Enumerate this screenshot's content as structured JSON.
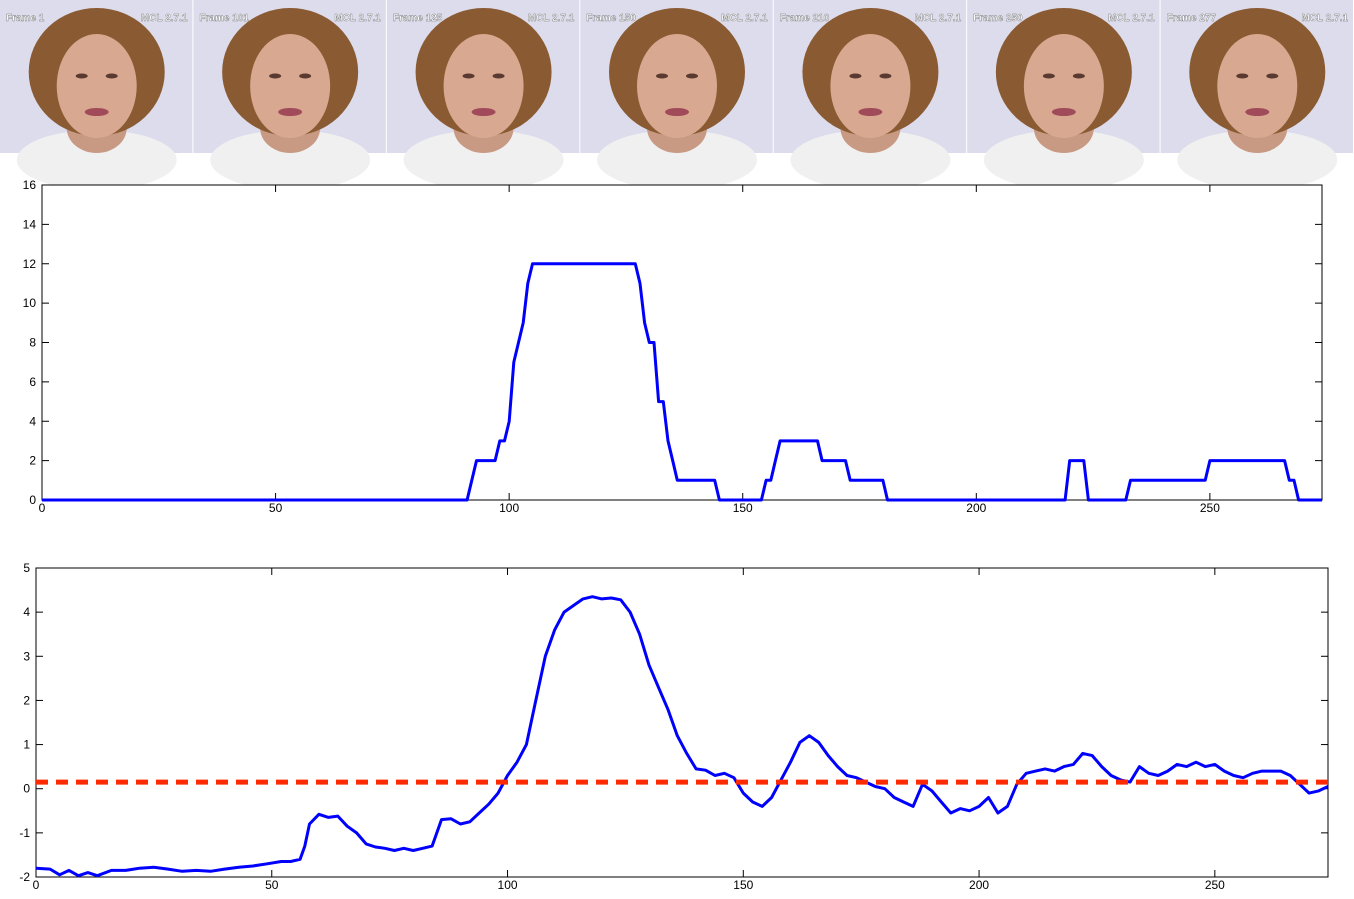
{
  "frames": [
    {
      "label": "Frame 1",
      "tag": "MCL 2.7.1"
    },
    {
      "label": "Frame 101",
      "tag": "MCL 2.7.1"
    },
    {
      "label": "Frame 125",
      "tag": "MCL 2.7.1"
    },
    {
      "label": "Frame 150",
      "tag": "MCL 2.7.1"
    },
    {
      "label": "Frame 210",
      "tag": "MCL 2.7.1"
    },
    {
      "label": "Frame 250",
      "tag": "MCL 2.7.1"
    },
    {
      "label": "Frame 277",
      "tag": "MCL 2.7.1"
    }
  ],
  "chart_data": [
    {
      "type": "line",
      "xlim": [
        0,
        274
      ],
      "ylim": [
        0,
        16
      ],
      "xticks": [
        0,
        50,
        100,
        150,
        200,
        250
      ],
      "yticks": [
        0,
        2,
        4,
        6,
        8,
        10,
        12,
        14,
        16
      ],
      "series": [
        {
          "color": "#0000ff",
          "x": [
            0,
            91,
            93,
            97,
            98,
            99,
            100,
            101,
            102,
            103,
            104,
            105,
            127,
            128,
            129,
            130,
            131,
            132,
            133,
            134,
            135,
            136,
            144,
            145,
            154,
            155,
            156,
            157,
            158,
            166,
            167,
            172,
            173,
            180,
            181,
            219,
            220,
            223,
            224,
            232,
            233,
            249,
            250,
            266,
            267,
            268,
            269,
            274
          ],
          "values": [
            0,
            0,
            2,
            2,
            3,
            3,
            4,
            7,
            8,
            9,
            11,
            12,
            12,
            11,
            9,
            8,
            8,
            5,
            5,
            3,
            2,
            1,
            1,
            0,
            0,
            1,
            1,
            2,
            3,
            3,
            2,
            2,
            1,
            1,
            0,
            0,
            2,
            2,
            0,
            0,
            1,
            1,
            2,
            2,
            1,
            1,
            0,
            0
          ]
        }
      ]
    },
    {
      "type": "line",
      "xlim": [
        0,
        274
      ],
      "ylim": [
        -2,
        5
      ],
      "xticks": [
        0,
        50,
        100,
        150,
        200,
        250
      ],
      "yticks": [
        -2,
        -1,
        0,
        1,
        2,
        3,
        4,
        5
      ],
      "series": [
        {
          "color": "#0000ff",
          "x": [
            0,
            3,
            5,
            7,
            9,
            11,
            13,
            16,
            19,
            22,
            25,
            28,
            31,
            34,
            37,
            40,
            43,
            46,
            49,
            52,
            54,
            56,
            57,
            58,
            60,
            62,
            64,
            66,
            68,
            70,
            72,
            74,
            76,
            78,
            80,
            82,
            84,
            86,
            88,
            90,
            92,
            94,
            96,
            98,
            100,
            102,
            104,
            106,
            108,
            110,
            112,
            114,
            116,
            118,
            120,
            122,
            124,
            126,
            128,
            130,
            132,
            134,
            136,
            138,
            140,
            142,
            144,
            146,
            148,
            150,
            152,
            154,
            156,
            158,
            160,
            162,
            164,
            166,
            168,
            170,
            172,
            174,
            176,
            178,
            180,
            182,
            184,
            186,
            188,
            190,
            192,
            194,
            196,
            198,
            200,
            202,
            204,
            206,
            208,
            210,
            212,
            214,
            216,
            218,
            220,
            222,
            224,
            226,
            228,
            230,
            232,
            234,
            236,
            238,
            240,
            242,
            244,
            246,
            248,
            250,
            252,
            254,
            256,
            258,
            260,
            262,
            264,
            266,
            268,
            270,
            272,
            274
          ],
          "values": [
            -1.8,
            -1.82,
            -1.95,
            -1.85,
            -1.97,
            -1.9,
            -1.97,
            -1.85,
            -1.85,
            -1.8,
            -1.78,
            -1.82,
            -1.87,
            -1.85,
            -1.87,
            -1.82,
            -1.78,
            -1.75,
            -1.7,
            -1.65,
            -1.65,
            -1.6,
            -1.3,
            -0.8,
            -0.58,
            -0.65,
            -0.62,
            -0.85,
            -1.0,
            -1.25,
            -1.32,
            -1.35,
            -1.4,
            -1.35,
            -1.4,
            -1.35,
            -1.3,
            -0.7,
            -0.68,
            -0.8,
            -0.75,
            -0.55,
            -0.35,
            -0.1,
            0.3,
            0.6,
            1.0,
            2.0,
            3.0,
            3.6,
            4.0,
            4.15,
            4.3,
            4.35,
            4.3,
            4.32,
            4.28,
            4.0,
            3.5,
            2.8,
            2.3,
            1.8,
            1.2,
            0.8,
            0.45,
            0.42,
            0.3,
            0.35,
            0.25,
            -0.1,
            -0.3,
            -0.4,
            -0.2,
            0.2,
            0.6,
            1.05,
            1.2,
            1.05,
            0.75,
            0.5,
            0.3,
            0.25,
            0.15,
            0.05,
            0.0,
            -0.2,
            -0.3,
            -0.4,
            0.1,
            -0.05,
            -0.3,
            -0.55,
            -0.45,
            -0.5,
            -0.4,
            -0.2,
            -0.55,
            -0.4,
            0.1,
            0.35,
            0.4,
            0.45,
            0.4,
            0.5,
            0.55,
            0.8,
            0.75,
            0.5,
            0.3,
            0.2,
            0.15,
            0.5,
            0.35,
            0.3,
            0.4,
            0.55,
            0.5,
            0.6,
            0.5,
            0.55,
            0.4,
            0.3,
            0.25,
            0.35,
            0.4,
            0.4,
            0.4,
            0.3,
            0.1,
            -0.1,
            -0.05,
            0.05
          ]
        },
        {
          "color": "#ff2a00",
          "dashed": true,
          "x": [
            0,
            274
          ],
          "values": [
            0.15,
            0.15
          ]
        }
      ]
    }
  ]
}
